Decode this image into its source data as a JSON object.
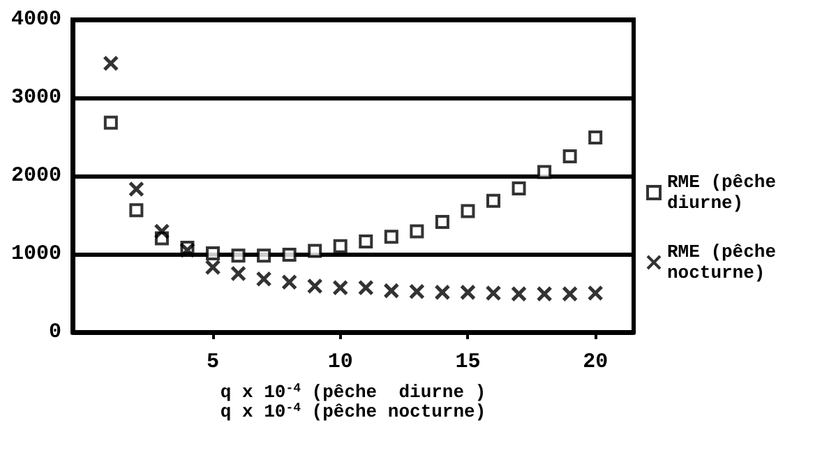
{
  "chart_data": {
    "type": "scatter",
    "xlabel": "q x 10$^{-4}$ (pêche  diurne )\nq x 10$^{-4}$ (pêche nocturne)",
    "x": [
      1,
      2,
      3,
      4,
      5,
      6,
      7,
      8,
      9,
      10,
      11,
      12,
      13,
      14,
      15,
      16,
      17,
      18,
      19,
      20
    ],
    "series": [
      {
        "name": "RME (pêche diurne)",
        "color": "#000000",
        "marker": "square",
        "values": [
          2680,
          1560,
          1200,
          1080,
          1010,
          980,
          980,
          990,
          1040,
          1100,
          1160,
          1220,
          1290,
          1410,
          1550,
          1680,
          1840,
          2050,
          2250,
          2490
        ]
      },
      {
        "name": "RME (pêche nocturne)",
        "color": "#000000",
        "marker": "cross",
        "values": [
          3440,
          1830,
          1290,
          1050,
          830,
          750,
          680,
          640,
          590,
          570,
          570,
          530,
          520,
          510,
          510,
          500,
          490,
          490,
          490,
          500
        ]
      }
    ],
    "xlim": [
      -0.5,
      21.5
    ],
    "xticks": [
      5,
      10,
      15,
      20
    ],
    "ylim": [
      0,
      4000
    ],
    "yticks": [
      0,
      1000,
      2000,
      3000,
      4000
    ],
    "grid": "y",
    "legend": "right"
  }
}
